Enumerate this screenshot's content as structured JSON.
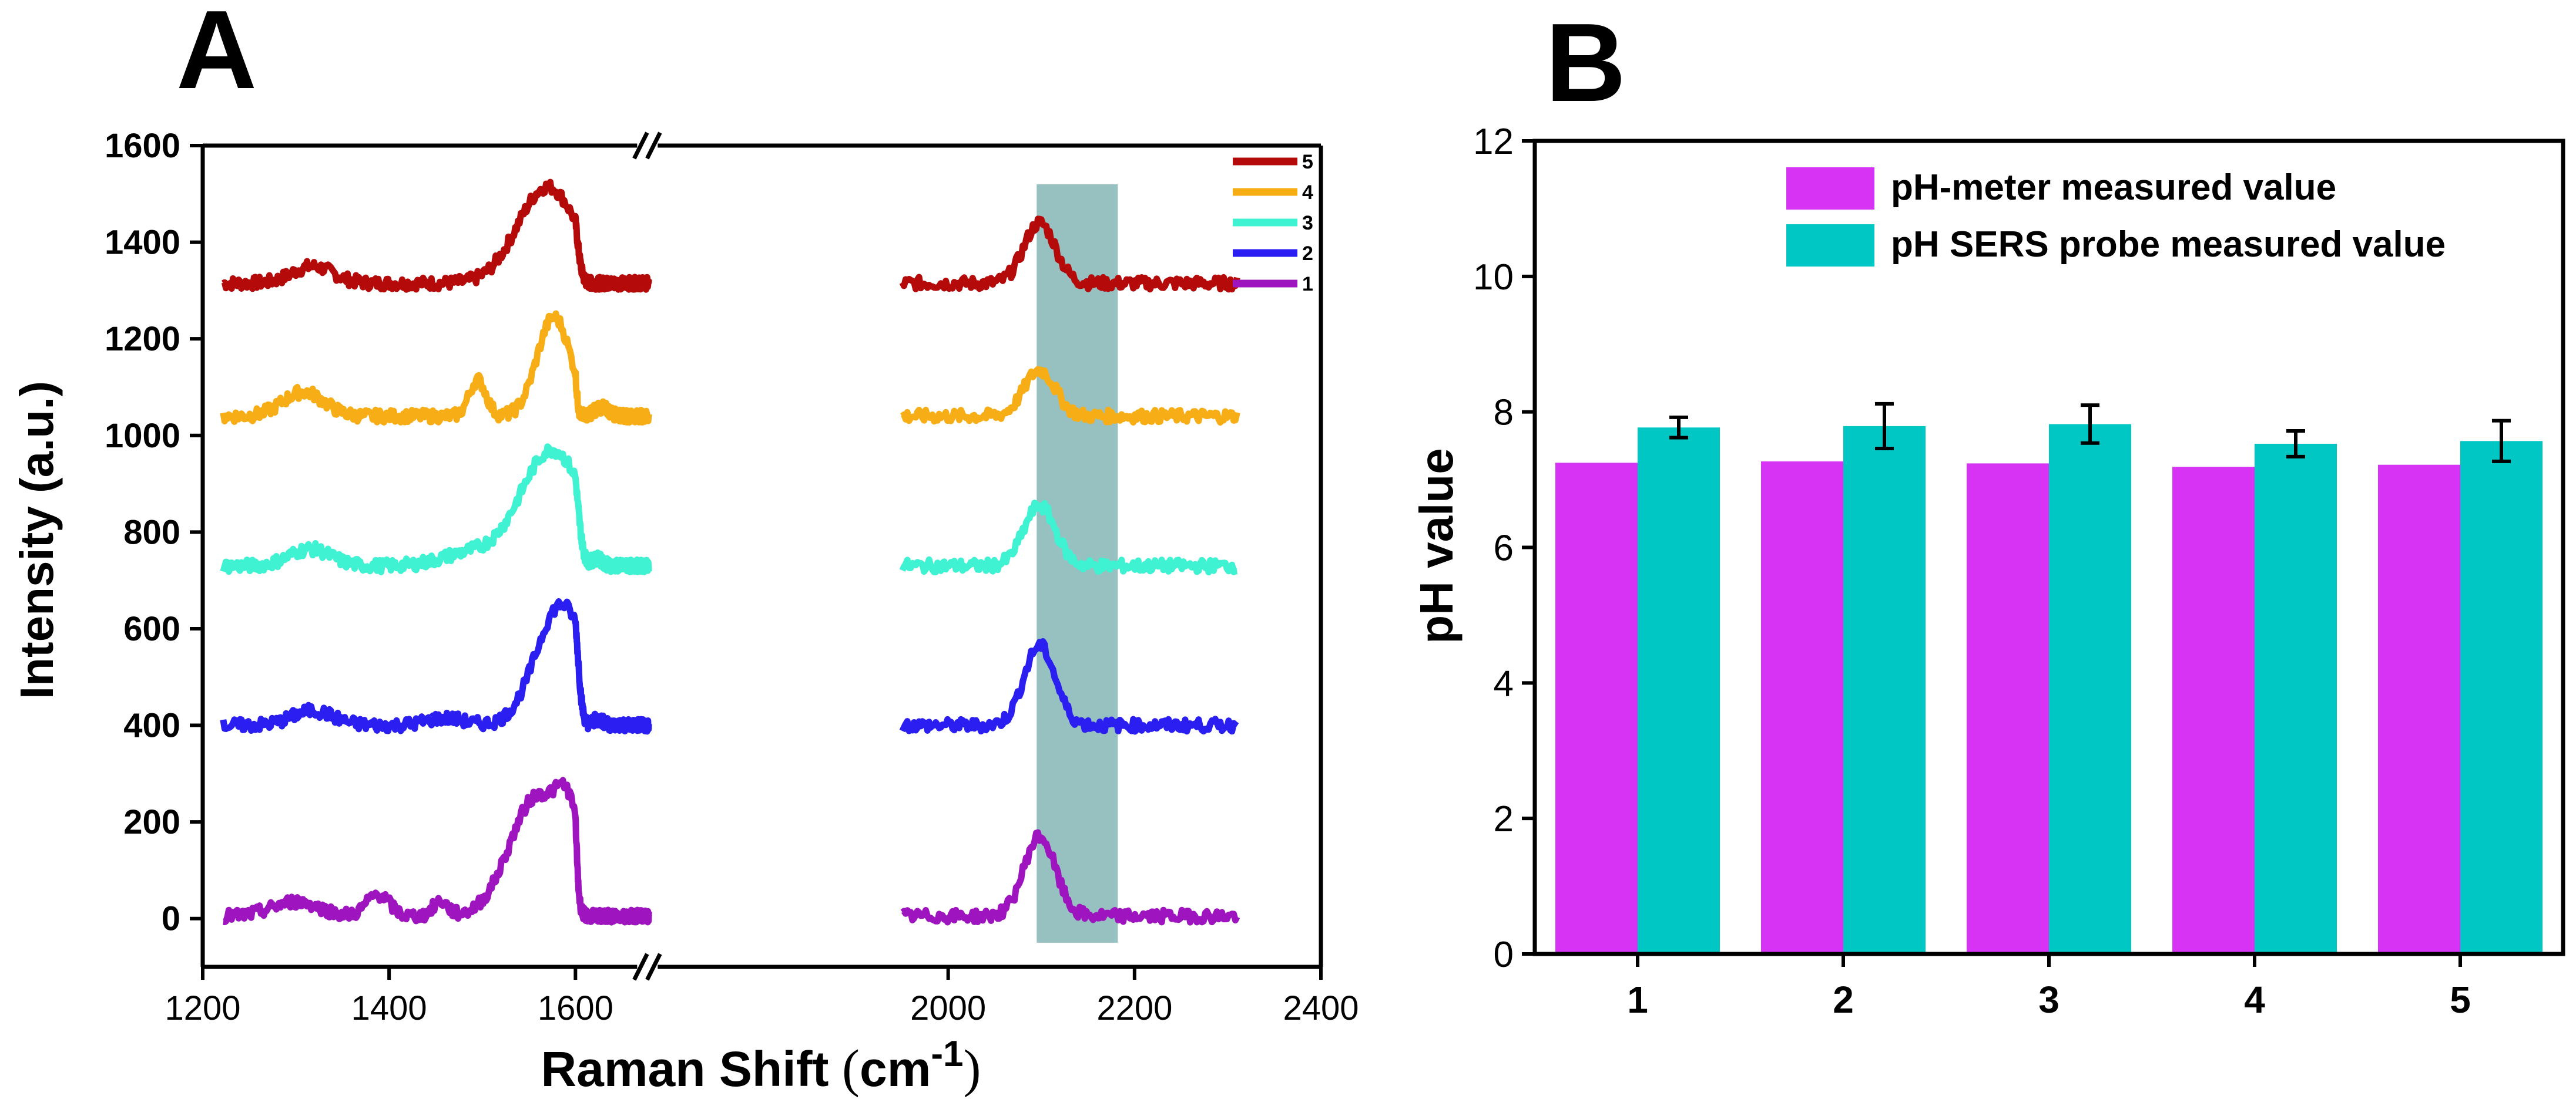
{
  "colors": {
    "axis": "#000000",
    "highlight": "#5f9ea0",
    "meter": "#d633f5",
    "probe": "#00c6c4"
  },
  "chart_data": [
    {
      "panel": "A",
      "type": "line",
      "xlabel": "Raman Shift",
      "xunit_base": "cm",
      "xunit_exp": "-1",
      "ylabel": "Intensity (a.u.)",
      "xlim": [
        1200,
        2400
      ],
      "ylim": [
        -100,
        1600
      ],
      "xticks": [
        1200,
        1400,
        1600,
        2000,
        2200,
        2400
      ],
      "yticks": [
        0,
        200,
        400,
        600,
        800,
        1000,
        1200,
        1400,
        1600
      ],
      "axis_break": "between 1600 and 2000 cm-1",
      "highlight_band": [
        2095,
        2182
      ],
      "legend_position": "top-right",
      "series": [
        {
          "name": "5",
          "color": "#b40a0a",
          "baseline": 1315,
          "amplitude": 1.0,
          "peaks": [
            [
              1318,
              35,
              22
            ],
            [
              1570,
              200,
              32
            ],
            [
              2133,
              125,
              14
            ]
          ]
        },
        {
          "name": "4",
          "color": "#f7ad16",
          "baseline": 1040,
          "amplitude": 1.0,
          "peaks": [
            [
              1308,
              50,
              22
            ],
            [
              1495,
              75,
              9
            ],
            [
              1577,
              205,
              18
            ],
            [
              1740,
              18,
              40
            ],
            [
              2133,
              95,
              14
            ]
          ]
        },
        {
          "name": "3",
          "color": "#3ef2d2",
          "baseline": 730,
          "amplitude": 1.0,
          "peaks": [
            [
              1315,
              35,
              22
            ],
            [
              1485,
              25,
              30
            ],
            [
              1575,
              240,
              34
            ],
            [
              1715,
              15,
              30
            ],
            [
              2133,
              125,
              14
            ]
          ]
        },
        {
          "name": "2",
          "color": "#2a1ff0",
          "baseline": 400,
          "amplitude": 1.0,
          "peaks": [
            [
              1318,
              30,
              22
            ],
            [
              1460,
              15,
              20
            ],
            [
              1585,
              250,
              27
            ],
            [
              1720,
              12,
              30
            ],
            [
              2133,
              165,
              14
            ]
          ]
        },
        {
          "name": "1",
          "color": "#9e14bf",
          "baseline": 5,
          "amplitude": 1.0,
          "peaks": [
            [
              1300,
              30,
              25
            ],
            [
              1388,
              45,
              12
            ],
            [
              1455,
              30,
              8
            ],
            [
              1560,
              250,
              30
            ],
            [
              1593,
              120,
              12
            ],
            [
              2133,
              165,
              14
            ]
          ]
        }
      ]
    },
    {
      "panel": "B",
      "type": "bar",
      "ylabel": "pH value",
      "ylim": [
        0,
        12
      ],
      "yticks": [
        0,
        2,
        4,
        6,
        8,
        10,
        12
      ],
      "categories": [
        "1",
        "2",
        "3",
        "4",
        "5"
      ],
      "legend_position": "top-right",
      "series": [
        {
          "name": "pH-meter measured value",
          "color": "#d633f5",
          "values": [
            7.25,
            7.27,
            7.24,
            7.19,
            7.22
          ]
        },
        {
          "name": "pH SERS probe measured value",
          "color": "#00c6c4",
          "values": [
            7.77,
            7.79,
            7.82,
            7.53,
            7.57
          ],
          "errors": [
            0.15,
            0.33,
            0.28,
            0.19,
            0.3
          ]
        }
      ]
    }
  ]
}
